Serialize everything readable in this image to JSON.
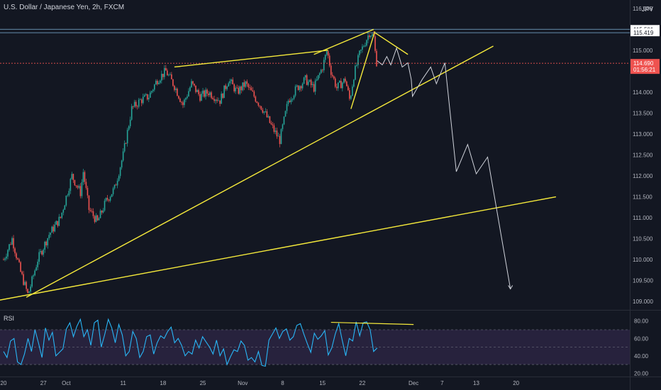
{
  "header": {
    "symbol_title": "U.S. Dollar / Japanese Yen, 2h, FXCM",
    "currency": "JPY",
    "rsi_label": "RSI"
  },
  "colors": {
    "background": "#131722",
    "candle_up": "#26a69a",
    "candle_down": "#ef5350",
    "trendline": "#f6ea3b",
    "projection": "#d1d4dc",
    "rsi_line": "#29b6f6",
    "rsi_band": "#2a2340",
    "hline": "#7fb2d8",
    "current_price": "#ef5350"
  },
  "chart_data": [
    {
      "type": "candlestick",
      "ylim": [
        108.8,
        116.2
      ],
      "y_ticks": [
        "109.000",
        "109.500",
        "110.000",
        "110.500",
        "111.000",
        "111.500",
        "112.000",
        "112.500",
        "113.000",
        "113.500",
        "114.000",
        "114.500",
        "115.000",
        "115.500",
        "116.000"
      ],
      "x_ticks": [
        "20",
        "27",
        "Oct",
        "11",
        "18",
        "25",
        "Nov",
        "8",
        "15",
        "22",
        "Dec",
        "7",
        "13",
        "20"
      ],
      "x_tick_days": [
        0,
        7,
        11,
        21,
        28,
        35,
        42,
        49,
        56,
        63,
        72,
        77,
        83,
        90
      ],
      "x_range_days": [
        -2,
        97
      ],
      "price_path": [
        [
          0,
          110.0
        ],
        [
          1.5,
          110.5
        ],
        [
          3,
          109.7
        ],
        [
          4.3,
          109.15
        ],
        [
          6,
          110.0
        ],
        [
          8,
          110.6
        ],
        [
          10,
          111.0
        ],
        [
          12,
          112.0
        ],
        [
          13.5,
          111.6
        ],
        [
          14,
          112.1
        ],
        [
          15,
          111.2
        ],
        [
          16.5,
          110.9
        ],
        [
          18,
          111.4
        ],
        [
          19.5,
          111.7
        ],
        [
          21,
          112.5
        ],
        [
          22.5,
          113.6
        ],
        [
          24,
          113.8
        ],
        [
          25.5,
          113.9
        ],
        [
          27,
          114.3
        ],
        [
          28.5,
          114.5
        ],
        [
          30,
          114.15
        ],
        [
          31.5,
          113.7
        ],
        [
          33,
          114.2
        ],
        [
          34.5,
          113.9
        ],
        [
          36,
          114.0
        ],
        [
          38,
          113.8
        ],
        [
          39.5,
          114.3
        ],
        [
          41,
          114.0
        ],
        [
          42.5,
          114.2
        ],
        [
          44,
          113.9
        ],
        [
          45.5,
          113.6
        ],
        [
          47,
          113.2
        ],
        [
          48.5,
          112.85
        ],
        [
          50,
          113.8
        ],
        [
          51.5,
          114.1
        ],
        [
          53,
          114.3
        ],
        [
          54.5,
          114.1
        ],
        [
          56,
          114.6
        ],
        [
          56.8,
          115.0
        ],
        [
          57.5,
          114.5
        ],
        [
          58.5,
          114.1
        ],
        [
          60,
          114.3
        ],
        [
          60.8,
          113.8
        ],
        [
          61.5,
          114.4
        ],
        [
          62.5,
          114.9
        ],
        [
          63.5,
          115.2
        ],
        [
          64.3,
          115.44
        ],
        [
          65,
          115.3
        ],
        [
          65.4,
          114.75
        ],
        [
          65.6,
          114.69
        ]
      ],
      "current_price": {
        "value": "114.690",
        "countdown": "01:56:21"
      },
      "horizontal_levels": [
        {
          "value": 115.501,
          "label": "115.501"
        },
        {
          "value": 115.419,
          "label": "115.419"
        }
      ],
      "trendlines": [
        {
          "points": [
            [
              -2,
              109.0
            ],
            [
              97,
              111.5
            ]
          ]
        },
        {
          "points": [
            [
              4,
              109.1
            ],
            [
              86,
              115.1
            ]
          ]
        },
        {
          "points": [
            [
              30,
              114.6
            ],
            [
              57,
              115.0
            ]
          ]
        },
        {
          "points": [
            [
              54.5,
              114.9
            ],
            [
              65,
              115.5
            ]
          ]
        },
        {
          "points": [
            [
              61,
              113.6
            ],
            [
              65.2,
              115.45
            ]
          ]
        },
        {
          "points": [
            [
              65.2,
              115.42
            ],
            [
              71,
              114.9
            ]
          ]
        }
      ],
      "projection_path": [
        [
          65.6,
          114.75
        ],
        [
          66.5,
          114.65
        ],
        [
          67.3,
          114.85
        ],
        [
          68,
          114.65
        ],
        [
          69,
          115.05
        ],
        [
          70,
          114.6
        ],
        [
          71,
          114.7
        ],
        [
          71.6,
          114.3
        ],
        [
          71.8,
          113.9
        ],
        [
          73.5,
          114.3
        ],
        [
          75,
          114.6
        ],
        [
          76,
          114.2
        ],
        [
          77.5,
          114.7
        ],
        [
          79.5,
          112.1
        ],
        [
          81.5,
          112.75
        ],
        [
          83,
          112.05
        ],
        [
          85,
          112.45
        ],
        [
          89,
          109.3
        ]
      ]
    },
    {
      "type": "line",
      "name": "RSI",
      "ylim": [
        17,
        92
      ],
      "y_ticks": [
        "20.00",
        "40.00",
        "60.00",
        "80.00"
      ],
      "band": [
        30,
        70
      ],
      "midline": 50,
      "values": [
        45,
        38,
        57,
        60,
        33,
        30,
        42,
        60,
        45,
        70,
        55,
        38,
        72,
        58,
        67,
        40,
        44,
        48,
        71,
        78,
        62,
        74,
        82,
        62,
        70,
        52,
        78,
        81,
        50,
        65,
        82,
        72,
        55,
        76,
        64,
        40,
        45,
        68,
        60,
        38,
        45,
        62,
        64,
        42,
        55,
        63,
        60,
        68,
        73,
        55,
        60,
        52,
        40,
        45,
        42,
        58,
        49,
        62,
        56,
        50,
        42,
        58,
        40,
        48,
        30,
        39,
        47,
        45,
        57,
        52,
        35,
        38,
        33,
        45,
        29,
        28,
        58,
        65,
        72,
        60,
        68,
        71,
        58,
        62,
        75,
        77,
        65,
        54,
        44,
        66,
        59,
        63,
        69,
        41,
        49,
        65,
        77,
        58,
        40,
        60,
        57,
        79,
        63,
        78,
        79,
        70,
        45,
        49
      ],
      "divergence": [
        [
          57.5,
          78.5
        ],
        [
          72,
          76
        ]
      ]
    }
  ]
}
